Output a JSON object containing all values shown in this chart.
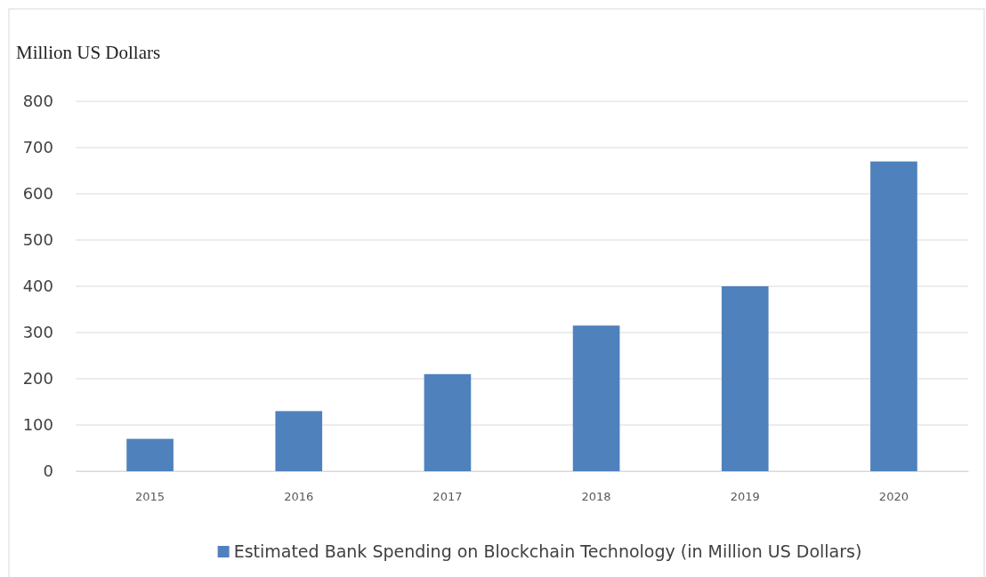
{
  "chart_data": {
    "type": "bar",
    "ylabel": "Million US Dollars",
    "categories": [
      "2015",
      "2016",
      "2017",
      "2018",
      "2019",
      "2020"
    ],
    "series": [
      {
        "name": "Estimated Bank Spending on Blockchain Technology (in Million US Dollars)",
        "color": "#4f81bd",
        "values": [
          70,
          130,
          210,
          315,
          400,
          670
        ]
      }
    ],
    "ylim": [
      0,
      800
    ],
    "yticks": [
      0,
      100,
      200,
      300,
      400,
      500,
      600,
      700,
      800
    ],
    "grid": "y",
    "legend": "bottom"
  }
}
